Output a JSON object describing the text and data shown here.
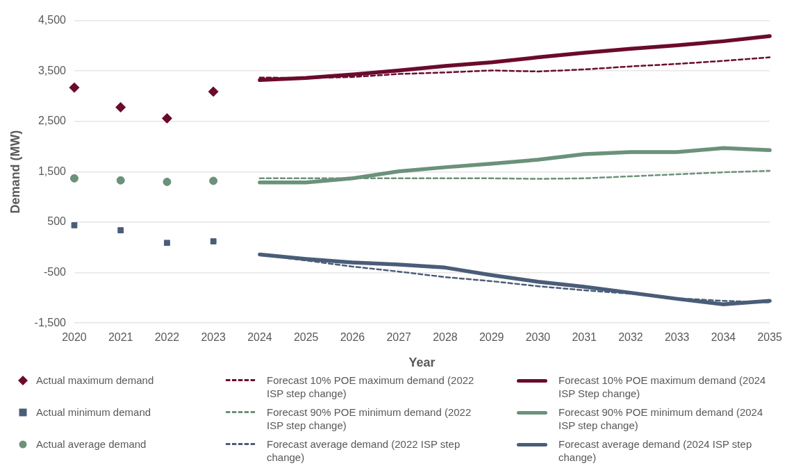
{
  "chart_data": {
    "type": "line",
    "xlabel": "Year",
    "ylabel": "Demand (MW)",
    "categories": [
      "2020",
      "2021",
      "2022",
      "2023",
      "2024",
      "2025",
      "2026",
      "2027",
      "2028",
      "2029",
      "2030",
      "2031",
      "2032",
      "2033",
      "2034",
      "2035"
    ],
    "ylim": [
      -1500,
      4500
    ],
    "yticks": [
      {
        "value": 4500,
        "label": "4,500"
      },
      {
        "value": 3500,
        "label": "3,500"
      },
      {
        "value": 2500,
        "label": "2,500"
      },
      {
        "value": 1500,
        "label": "1,500"
      },
      500,
      -500,
      {
        "value": -1500,
        "label": "-1,500"
      }
    ],
    "grid": "y",
    "legend": "bottom",
    "series": [
      {
        "name": "Actual maximum demand",
        "type": "scatter",
        "marker": "diamond",
        "color": "#6b0a2e",
        "values": [
          3170,
          2780,
          2560,
          3090,
          null,
          null,
          null,
          null,
          null,
          null,
          null,
          null,
          null,
          null,
          null,
          null
        ]
      },
      {
        "name": "Forecast 10% POE maximum demand (2022 ISP step change)",
        "type": "line",
        "line_style": "dashed",
        "color": "#6b0a2e",
        "values": [
          null,
          null,
          null,
          null,
          3370,
          3360,
          3380,
          3440,
          3470,
          3510,
          3490,
          3530,
          3590,
          3640,
          3700,
          3770
        ]
      },
      {
        "name": "Forecast 10% POE maximum demand (2024 ISP Step change)",
        "type": "line",
        "line_style": "solid",
        "color": "#6b0a2e",
        "values": [
          null,
          null,
          null,
          null,
          3320,
          3360,
          3430,
          3510,
          3600,
          3670,
          3770,
          3860,
          3940,
          4010,
          4090,
          4190
        ]
      },
      {
        "name": "Actual minimum demand",
        "type": "scatter",
        "marker": "square",
        "color": "#4a5d78",
        "values": [
          440,
          340,
          90,
          120,
          null,
          null,
          null,
          null,
          null,
          null,
          null,
          null,
          null,
          null,
          null,
          null
        ]
      },
      {
        "name": "Forecast 90% POE minimum demand (2022 ISP step change)",
        "type": "line",
        "line_style": "dashed",
        "color": "#6b917a",
        "values": [
          null,
          null,
          null,
          null,
          1370,
          1370,
          1370,
          1370,
          1370,
          1370,
          1360,
          1370,
          1410,
          1450,
          1490,
          1520
        ]
      },
      {
        "name": "Forecast 90% POE minimum demand (2024 ISP step change)",
        "type": "line",
        "line_style": "solid",
        "color": "#6b917a",
        "values": [
          null,
          null,
          null,
          null,
          1290,
          1290,
          1370,
          1510,
          1590,
          1660,
          1740,
          1850,
          1890,
          1890,
          1970,
          1930
        ]
      },
      {
        "name": "Actual average demand",
        "type": "scatter",
        "marker": "circle",
        "color": "#6b917a",
        "values": [
          1370,
          1330,
          1300,
          1320,
          null,
          null,
          null,
          null,
          null,
          null,
          null,
          null,
          null,
          null,
          null,
          null
        ]
      },
      {
        "name": "Forecast average demand (2022 ISP step change)",
        "type": "line",
        "line_style": "dashed",
        "color": "#4a5d78",
        "values": [
          null,
          null,
          null,
          null,
          -140,
          -260,
          -380,
          -480,
          -590,
          -670,
          -770,
          -850,
          -920,
          -1010,
          -1060,
          -1090
        ]
      },
      {
        "name": "Forecast average demand (2024 ISP step change)",
        "type": "line",
        "line_style": "solid",
        "color": "#4a5d78",
        "values": [
          null,
          null,
          null,
          null,
          -140,
          -230,
          -300,
          -340,
          -400,
          -550,
          -680,
          -780,
          -900,
          -1020,
          -1130,
          -1060
        ]
      }
    ]
  }
}
